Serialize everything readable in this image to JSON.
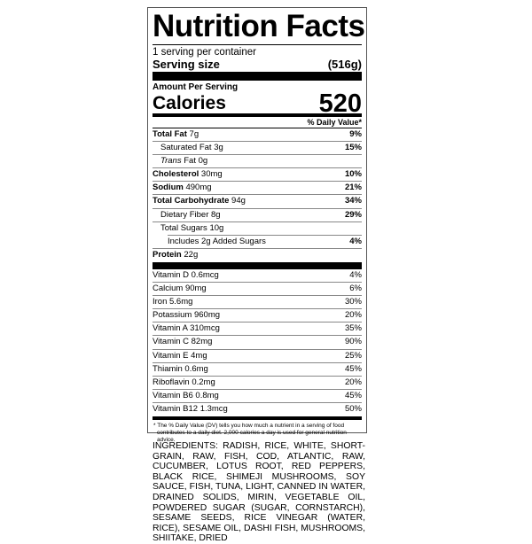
{
  "title": "Nutrition Facts",
  "servings_per_container": "1 serving per container",
  "serving_size_label": "Serving size",
  "serving_size_value": "(516g)",
  "amount_per_serving": "Amount Per Serving",
  "calories_label": "Calories",
  "calories_value": "520",
  "dv_header": "% Daily Value*",
  "nutrients": [
    {
      "name": "Total Fat",
      "amount": "7g",
      "dv": "9%"
    },
    {
      "name": "Saturated Fat",
      "amount": "3g",
      "dv": "15%"
    },
    {
      "name_italic": "Trans",
      "name": "Fat",
      "amount": "0g",
      "dv": ""
    },
    {
      "name": "Cholesterol",
      "amount": "30mg",
      "dv": "10%"
    },
    {
      "name": "Sodium",
      "amount": "490mg",
      "dv": "21%"
    },
    {
      "name": "Total Carbohydrate",
      "amount": "94g",
      "dv": "34%"
    },
    {
      "name": "Dietary Fiber",
      "amount": "8g",
      "dv": "29%"
    },
    {
      "name": "Total Sugars",
      "amount": "10g",
      "dv": ""
    },
    {
      "name": "Includes 2g Added Sugars",
      "amount": "",
      "dv": "4%"
    },
    {
      "name": "Protein",
      "amount": "22g",
      "dv": ""
    }
  ],
  "vitamins": [
    {
      "label": "Vitamin D 0.6mcg",
      "dv": "4%"
    },
    {
      "label": "Calcium 90mg",
      "dv": "6%"
    },
    {
      "label": "Iron 5.6mg",
      "dv": "30%"
    },
    {
      "label": "Potassium 960mg",
      "dv": "20%"
    },
    {
      "label": "Vitamin A 310mcg",
      "dv": "35%"
    },
    {
      "label": "Vitamin C 82mg",
      "dv": "90%"
    },
    {
      "label": "Vitamin E 4mg",
      "dv": "25%"
    },
    {
      "label": "Thiamin 0.6mg",
      "dv": "45%"
    },
    {
      "label": "Riboflavin 0.2mg",
      "dv": "20%"
    },
    {
      "label": "Vitamin B6 0.8mg",
      "dv": "45%"
    },
    {
      "label": "Vitamin B12 1.3mcg",
      "dv": "50%"
    }
  ],
  "footnote": "* The % Daily Value (DV) tells you how much a nutrient in a serving of food contributes to a daily diet. 2,000 calories a day is used for general nutrition advice.",
  "ingredients": "INGREDIENTS: RADISH, RICE, WHITE, SHORT-GRAIN, RAW, FISH, COD, ATLANTIC, RAW, CUCUMBER, LOTUS ROOT, RED PEPPERS, BLACK RICE, SHIMEJI MUSHROOMS, SOY SAUCE, FISH, TUNA, LIGHT, CANNED IN WATER, DRAINED SOLIDS, MIRIN, VEGETABLE OIL, POWDERED SUGAR (SUGAR, CORNSTARCH), SESAME SEEDS, RICE VINEGAR (WATER, RICE), SESAME OIL, DASHI FISH, MUSHROOMS, SHIITAKE, DRIED"
}
